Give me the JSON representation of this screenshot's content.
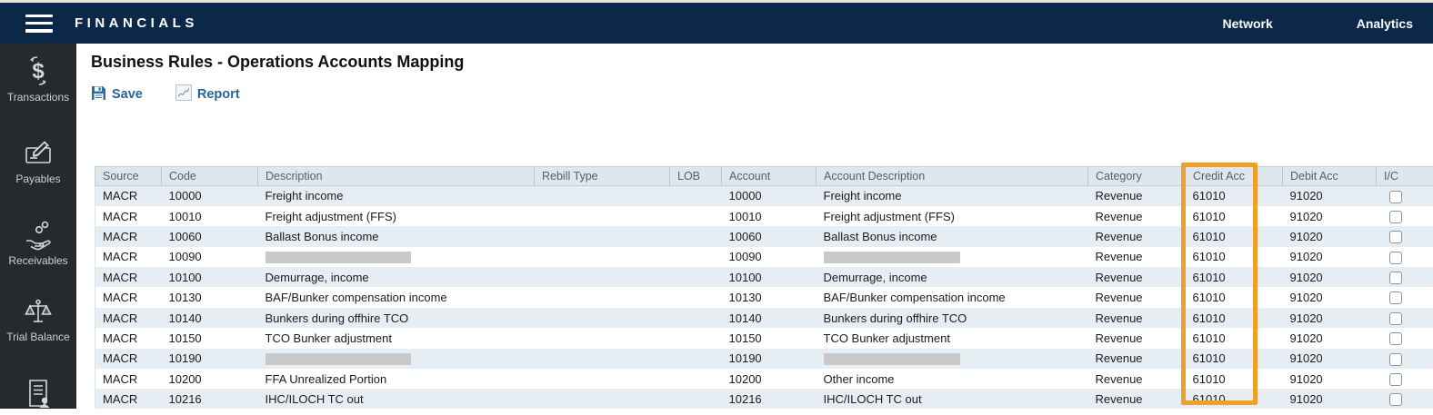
{
  "topbar": {
    "brand": "FINANCIALS",
    "nav": [
      {
        "label": "Network"
      },
      {
        "label": "Analytics"
      }
    ]
  },
  "sidebar": {
    "items": [
      {
        "label": "Transactions"
      },
      {
        "label": "Payables"
      },
      {
        "label": "Receivables"
      },
      {
        "label": "Trial Balance"
      },
      {
        "label": ""
      }
    ]
  },
  "page": {
    "title": "Business Rules - Operations Accounts Mapping",
    "toolbar": {
      "save_label": "Save",
      "report_label": "Report"
    }
  },
  "table": {
    "columns": [
      "Source",
      "Code",
      "Description",
      "Rebill Type",
      "LOB",
      "Account",
      "Account Description",
      "Category",
      "Credit Acc",
      "Debit Acc",
      "I/C"
    ],
    "highlight": {
      "column": "Credit Acc",
      "color": "#efa02a"
    },
    "rows": [
      {
        "source": "MACR",
        "code": "10000",
        "description": "Freight income",
        "rebill_type": "",
        "lob": "",
        "account": "10000",
        "account_description": "Freight income",
        "category": "Revenue",
        "credit_acc": "61010",
        "debit_acc": "91020",
        "ic_checked": false,
        "description_redacted": false,
        "account_description_redacted": false
      },
      {
        "source": "MACR",
        "code": "10010",
        "description": "Freight adjustment (FFS)",
        "rebill_type": "",
        "lob": "",
        "account": "10010",
        "account_description": "Freight adjustment (FFS)",
        "category": "Revenue",
        "credit_acc": "61010",
        "debit_acc": "91020",
        "ic_checked": false,
        "description_redacted": false,
        "account_description_redacted": false
      },
      {
        "source": "MACR",
        "code": "10060",
        "description": "Ballast Bonus income",
        "rebill_type": "",
        "lob": "",
        "account": "10060",
        "account_description": "Ballast Bonus income",
        "category": "Revenue",
        "credit_acc": "61010",
        "debit_acc": "91020",
        "ic_checked": false,
        "description_redacted": false,
        "account_description_redacted": false
      },
      {
        "source": "MACR",
        "code": "10090",
        "description": "",
        "rebill_type": "",
        "lob": "",
        "account": "10090",
        "account_description": "",
        "category": "Revenue",
        "credit_acc": "61010",
        "debit_acc": "91020",
        "ic_checked": false,
        "description_redacted": true,
        "account_description_redacted": true
      },
      {
        "source": "MACR",
        "code": "10100",
        "description": "Demurrage, income",
        "rebill_type": "",
        "lob": "",
        "account": "10100",
        "account_description": "Demurrage, income",
        "category": "Revenue",
        "credit_acc": "61010",
        "debit_acc": "91020",
        "ic_checked": false,
        "description_redacted": false,
        "account_description_redacted": false
      },
      {
        "source": "MACR",
        "code": "10130",
        "description": "BAF/Bunker compensation income",
        "rebill_type": "",
        "lob": "",
        "account": "10130",
        "account_description": "BAF/Bunker compensation income",
        "category": "Revenue",
        "credit_acc": "61010",
        "debit_acc": "91020",
        "ic_checked": false,
        "description_redacted": false,
        "account_description_redacted": false
      },
      {
        "source": "MACR",
        "code": "10140",
        "description": "Bunkers during offhire TCO",
        "rebill_type": "",
        "lob": "",
        "account": "10140",
        "account_description": "Bunkers during offhire TCO",
        "category": "Revenue",
        "credit_acc": "61010",
        "debit_acc": "91020",
        "ic_checked": false,
        "description_redacted": false,
        "account_description_redacted": false
      },
      {
        "source": "MACR",
        "code": "10150",
        "description": "TCO Bunker adjustment",
        "rebill_type": "",
        "lob": "",
        "account": "10150",
        "account_description": "TCO Bunker adjustment",
        "category": "Revenue",
        "credit_acc": "61010",
        "debit_acc": "91020",
        "ic_checked": false,
        "description_redacted": false,
        "account_description_redacted": false
      },
      {
        "source": "MACR",
        "code": "10190",
        "description": "",
        "rebill_type": "",
        "lob": "",
        "account": "10190",
        "account_description": "",
        "category": "Revenue",
        "credit_acc": "61010",
        "debit_acc": "91020",
        "ic_checked": false,
        "description_redacted": true,
        "account_description_redacted": true
      },
      {
        "source": "MACR",
        "code": "10200",
        "description": "FFA Unrealized Portion",
        "rebill_type": "",
        "lob": "",
        "account": "10200",
        "account_description": "Other income",
        "category": "Revenue",
        "credit_acc": "61010",
        "debit_acc": "91020",
        "ic_checked": false,
        "description_redacted": false,
        "account_description_redacted": false
      },
      {
        "source": "MACR",
        "code": "10216",
        "description": "IHC/ILOCH TC out",
        "rebill_type": "",
        "lob": "",
        "account": "10216",
        "account_description": "IHC/ILOCH TC out",
        "category": "Revenue",
        "credit_acc": "61010",
        "debit_acc": "91020",
        "ic_checked": false,
        "description_redacted": false,
        "account_description_redacted": false
      }
    ]
  }
}
